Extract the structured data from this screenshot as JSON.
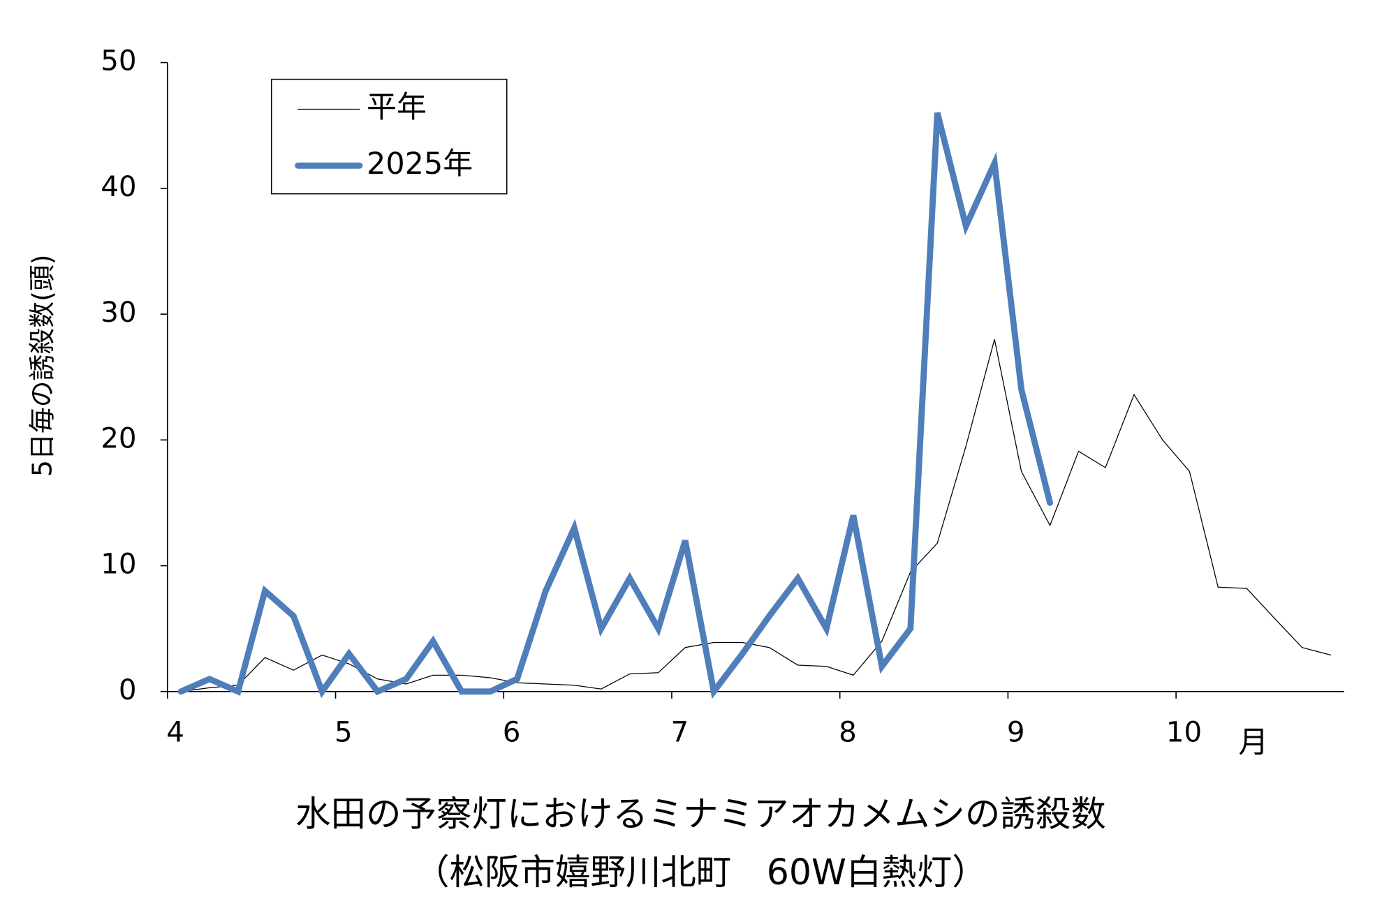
{
  "chart_data": {
    "type": "line",
    "title": "水田の予察灯におけるミナミアオカメムシの誘殺数",
    "subtitle": "（松阪市嬉野川北町　60W白熱灯）",
    "y_label": "5日毎の誘殺数(頭)",
    "x_label": "月",
    "x": [
      4.08,
      4.25,
      4.42,
      4.58,
      4.75,
      4.92,
      5.08,
      5.25,
      5.42,
      5.58,
      5.75,
      5.92,
      6.08,
      6.25,
      6.42,
      6.58,
      6.75,
      6.92,
      7.08,
      7.25,
      7.42,
      7.58,
      7.75,
      7.92,
      8.08,
      8.25,
      8.42,
      8.58,
      8.75,
      8.92,
      9.08,
      9.25,
      9.42,
      9.58,
      9.75,
      9.92,
      10.08,
      10.25,
      10.42,
      10.58,
      10.75,
      10.92
    ],
    "series": [
      {
        "name": "平年",
        "color": "#000000",
        "width": 1,
        "values": [
          0,
          0.3,
          0.5,
          2.7,
          1.7,
          2.9,
          2.2,
          1.0,
          0.6,
          1.3,
          1.3,
          1.1,
          0.7,
          0.6,
          0.5,
          0.2,
          1.4,
          1.5,
          3.5,
          3.9,
          3.9,
          3.5,
          2.1,
          2.0,
          1.3,
          4.0,
          9.5,
          11.8,
          19.5,
          28,
          17.5,
          13.2,
          19.1,
          17.8,
          23.6,
          20,
          17.5,
          8.3,
          8.2,
          5.9,
          3.5,
          2.9
        ]
      },
      {
        "name": "2025年",
        "color": "#4f7ebb",
        "width": 7,
        "values": [
          0,
          1,
          0,
          8,
          6,
          0,
          3,
          0,
          1,
          4,
          0,
          0,
          1,
          8,
          13,
          5,
          9,
          5,
          12,
          0,
          3,
          6,
          9,
          5,
          14,
          2,
          5,
          46,
          37,
          42,
          24,
          15,
          null,
          null,
          null,
          null,
          null,
          null,
          null,
          null,
          null,
          null
        ]
      }
    ],
    "xlim": [
      4,
      11
    ],
    "xticks": [
      4,
      5,
      6,
      7,
      8,
      9,
      10
    ],
    "ylim": [
      0,
      50
    ],
    "yticks": [
      0,
      10,
      20,
      30,
      40,
      50
    ],
    "grid": false,
    "legend": "upper left"
  }
}
